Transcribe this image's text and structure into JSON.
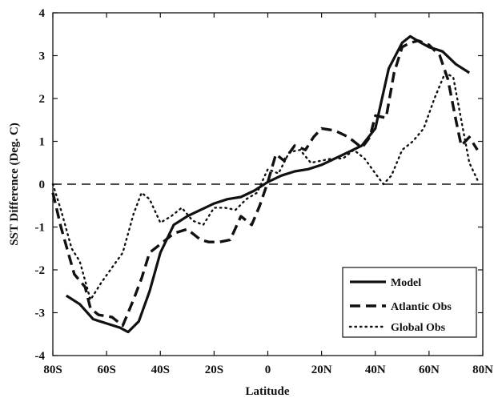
{
  "chart_data": {
    "type": "line",
    "xlabel": "Latitude",
    "ylabel": "SST Difference (Deg. C)",
    "xlim": [
      -80,
      80
    ],
    "ylim": [
      -4,
      4
    ],
    "xticks": [
      -80,
      -60,
      -40,
      -20,
      0,
      20,
      40,
      60,
      80
    ],
    "xtick_labels": [
      "80S",
      "60S",
      "40S",
      "20S",
      "0",
      "20N",
      "40N",
      "60N",
      "80N"
    ],
    "yticks": [
      -4,
      -3,
      -2,
      -1,
      0,
      1,
      2,
      3,
      4
    ],
    "ytick_labels": [
      "-4",
      "-3",
      "-2",
      "-1",
      "0",
      "1",
      "2",
      "3",
      "4"
    ],
    "grid": false,
    "legend_position": "bottom-right",
    "zero_line": {
      "y": 0,
      "style": "dashed"
    },
    "series": [
      {
        "name": "Model",
        "style": "solid",
        "x": [
          -75,
          -70,
          -65,
          -60,
          -55,
          -52,
          -48,
          -44,
          -40,
          -35,
          -30,
          -25,
          -20,
          -15,
          -10,
          -5,
          0,
          5,
          10,
          15,
          20,
          25,
          30,
          35,
          40,
          45,
          50,
          53,
          57,
          60,
          65,
          70,
          75
        ],
        "y": [
          -2.6,
          -2.8,
          -3.15,
          -3.25,
          -3.35,
          -3.45,
          -3.2,
          -2.5,
          -1.6,
          -0.95,
          -0.75,
          -0.6,
          -0.45,
          -0.35,
          -0.3,
          -0.15,
          0.05,
          0.2,
          0.3,
          0.35,
          0.45,
          0.6,
          0.75,
          0.9,
          1.3,
          2.7,
          3.3,
          3.45,
          3.3,
          3.2,
          3.1,
          2.8,
          2.6
        ]
      },
      {
        "name": "Atlantic Obs",
        "style": "dashed",
        "x": [
          -80,
          -77,
          -72,
          -68,
          -66,
          -63,
          -58,
          -54,
          -50,
          -47,
          -44,
          -40,
          -35,
          -30,
          -25,
          -22,
          -18,
          -14,
          -10,
          -6,
          -3,
          0,
          3,
          6,
          10,
          14,
          17,
          20,
          25,
          30,
          35,
          38,
          40,
          44,
          47,
          50,
          53,
          56,
          60,
          64,
          67,
          70,
          72,
          75,
          78
        ],
        "y": [
          -0.2,
          -1.0,
          -2.1,
          -2.4,
          -2.9,
          -3.05,
          -3.1,
          -3.3,
          -2.7,
          -2.2,
          -1.6,
          -1.4,
          -1.15,
          -1.05,
          -1.3,
          -1.35,
          -1.35,
          -1.3,
          -0.75,
          -0.95,
          -0.5,
          0.05,
          0.7,
          0.55,
          0.9,
          0.8,
          1.1,
          1.3,
          1.25,
          1.1,
          0.85,
          1.1,
          1.6,
          1.55,
          2.6,
          3.2,
          3.3,
          3.35,
          3.25,
          3.0,
          2.45,
          1.5,
          0.9,
          1.1,
          0.8
        ]
      },
      {
        "name": "Global Obs",
        "style": "dotted",
        "x": [
          -80,
          -77,
          -73,
          -70,
          -66,
          -62,
          -58,
          -54,
          -50,
          -47,
          -44,
          -40,
          -36,
          -32,
          -28,
          -24,
          -20,
          -16,
          -12,
          -8,
          -4,
          0,
          4,
          8,
          12,
          16,
          20,
          24,
          28,
          32,
          36,
          40,
          43,
          46,
          50,
          54,
          58,
          62,
          66,
          69,
          72,
          75,
          78
        ],
        "y": [
          0.0,
          -0.6,
          -1.5,
          -1.8,
          -2.7,
          -2.3,
          -1.95,
          -1.6,
          -0.7,
          -0.2,
          -0.35,
          -0.9,
          -0.75,
          -0.55,
          -0.85,
          -0.95,
          -0.55,
          -0.55,
          -0.6,
          -0.35,
          -0.2,
          0.35,
          0.25,
          0.75,
          0.8,
          0.5,
          0.55,
          0.6,
          0.6,
          0.8,
          0.6,
          0.25,
          0.0,
          0.2,
          0.8,
          1.0,
          1.3,
          2.0,
          2.6,
          2.5,
          1.5,
          0.5,
          0.1
        ]
      }
    ]
  }
}
